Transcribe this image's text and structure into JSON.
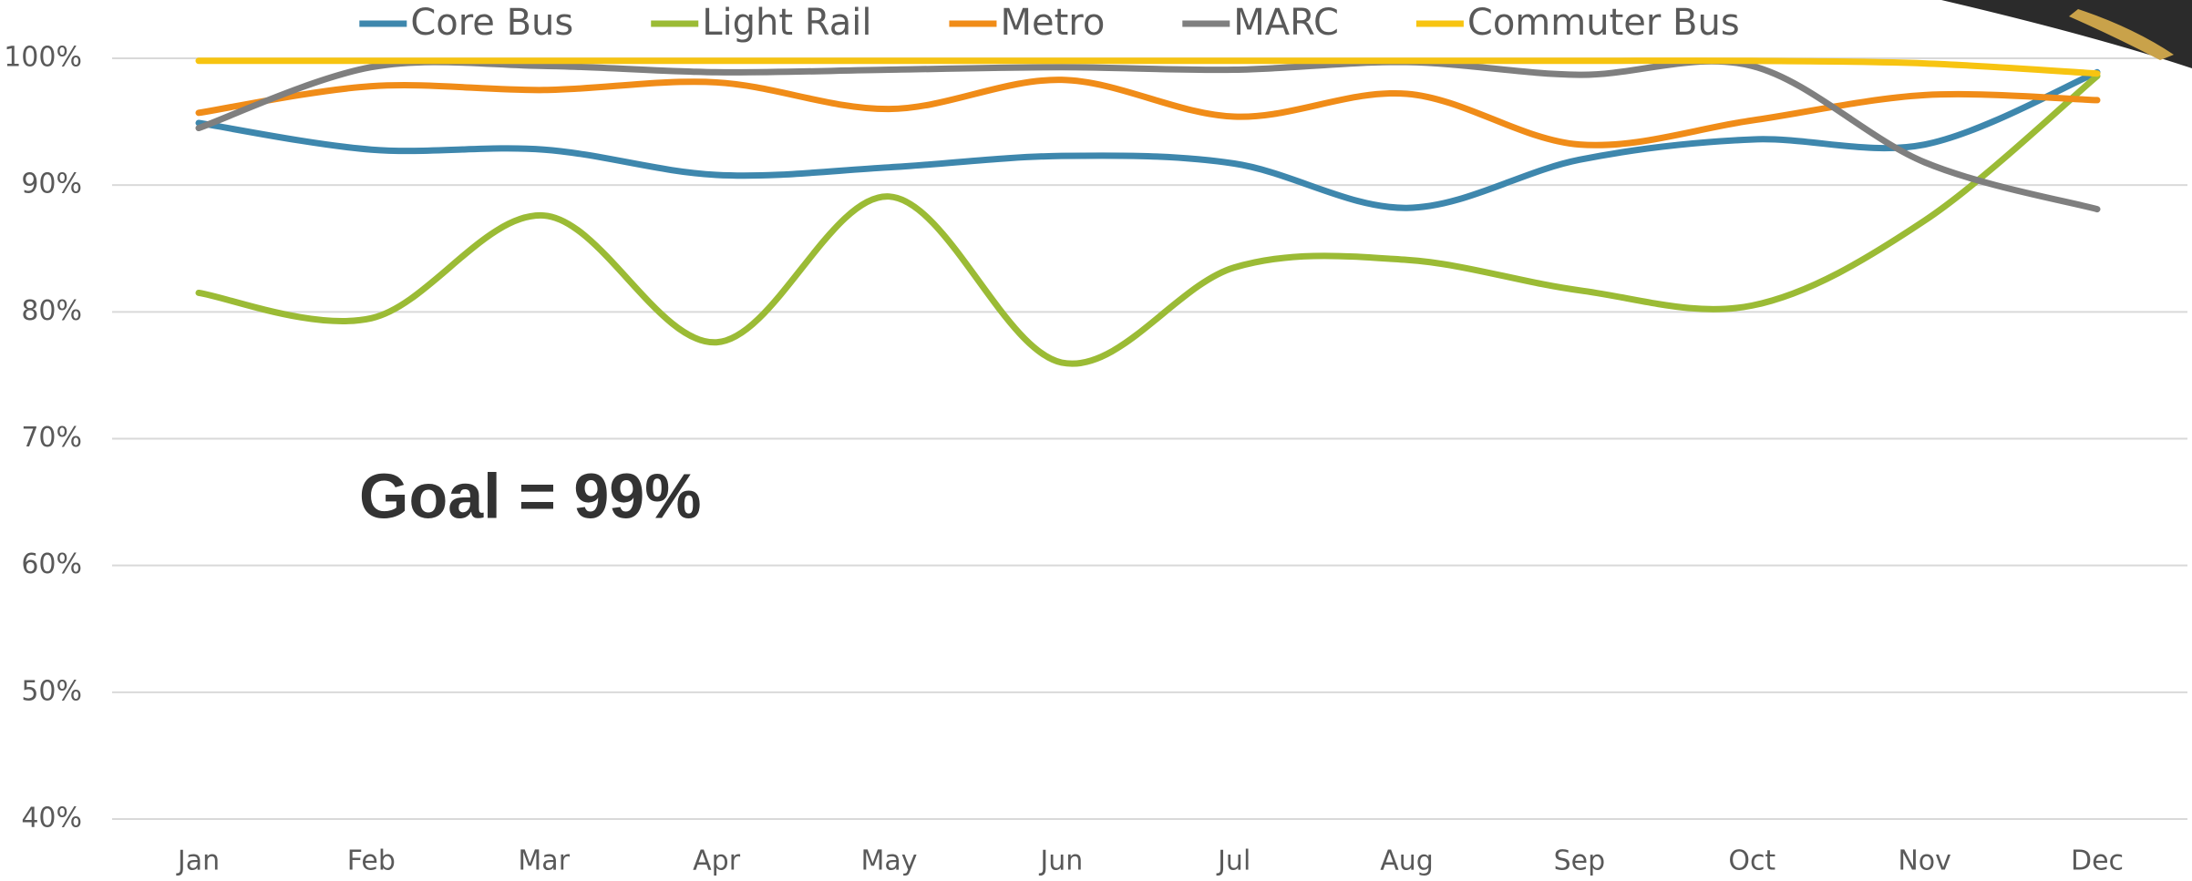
{
  "chart_data": {
    "type": "line",
    "categories": [
      "Jan",
      "Feb",
      "Mar",
      "Apr",
      "May",
      "Jun",
      "Jul",
      "Aug",
      "Sep",
      "Oct",
      "Nov",
      "Dec"
    ],
    "series": [
      {
        "name": "Core Bus",
        "color": "#3e87ad",
        "values": [
          94.9,
          92.8,
          92.8,
          90.8,
          91.4,
          92.3,
          91.7,
          88.2,
          92.0,
          93.6,
          93.2,
          98.9
        ]
      },
      {
        "name": "Light Rail",
        "color": "#9bbb35",
        "values": [
          81.5,
          79.5,
          87.6,
          77.6,
          89.1,
          76.0,
          83.5,
          84.1,
          81.7,
          80.5,
          87.2,
          98.6
        ]
      },
      {
        "name": "Metro",
        "color": "#f08c18",
        "values": [
          95.7,
          97.8,
          97.5,
          98.1,
          96.0,
          98.3,
          95.4,
          97.2,
          93.2,
          95.1,
          97.1,
          96.7
        ]
      },
      {
        "name": "MARC",
        "color": "#7f7f7f",
        "values": [
          94.5,
          99.3,
          99.4,
          98.9,
          99.1,
          99.3,
          99.1,
          99.7,
          98.7,
          99.4,
          91.8,
          88.1
        ]
      },
      {
        "name": "Commuter Bus",
        "color": "#f7c411",
        "values": [
          99.8,
          99.8,
          99.8,
          99.8,
          99.8,
          99.8,
          99.8,
          99.8,
          99.8,
          99.8,
          99.6,
          98.8
        ]
      }
    ],
    "ylim": [
      40,
      100
    ],
    "yticks": [
      {
        "value": 40,
        "label": "40%"
      },
      {
        "value": 50,
        "label": "50%"
      },
      {
        "value": 60,
        "label": "60%"
      },
      {
        "value": 70,
        "label": "70%"
      },
      {
        "value": 80,
        "label": "80%"
      },
      {
        "value": 90,
        "label": "90%"
      },
      {
        "value": 100,
        "label": "100%"
      }
    ],
    "annotation": "Goal = 99%",
    "grid": true,
    "legend": "top"
  }
}
